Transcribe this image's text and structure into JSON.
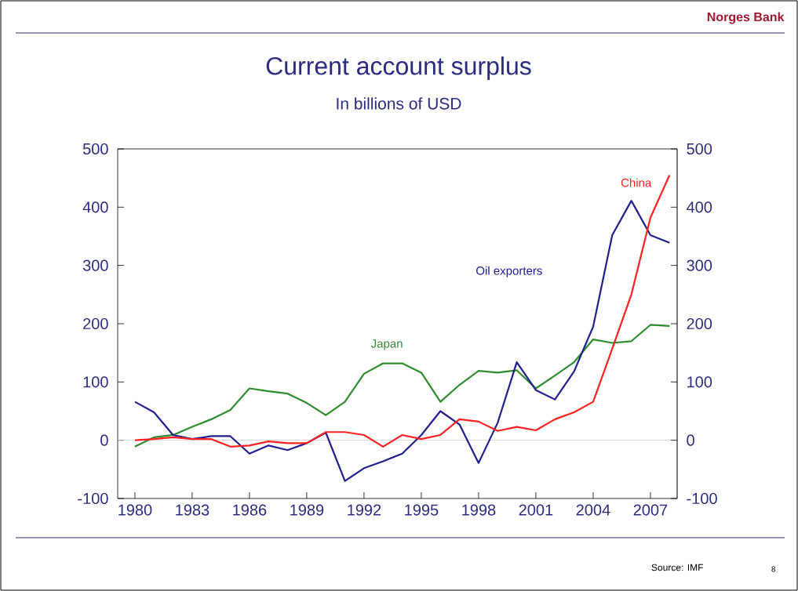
{
  "chart_data": {
    "type": "line",
    "title": "Current account surplus",
    "subtitle": "In billions of USD",
    "x": [
      1980,
      1981,
      1982,
      1983,
      1984,
      1985,
      1986,
      1987,
      1988,
      1989,
      1990,
      1991,
      1992,
      1993,
      1994,
      1995,
      1996,
      1997,
      1998,
      1999,
      2000,
      2001,
      2002,
      2003,
      2004,
      2005,
      2006,
      2007,
      2008
    ],
    "series": [
      {
        "name": "Japan",
        "color": "#2e8b2e",
        "values": [
          -11,
          5,
          9,
          23,
          36,
          52,
          89,
          84,
          80,
          64,
          43,
          66,
          114,
          132,
          132,
          116,
          66,
          95,
          119,
          116,
          120,
          89,
          111,
          134,
          173,
          167,
          170,
          198,
          196
        ]
      },
      {
        "name": "Oil exporters",
        "color": "#1f1f8f",
        "values": [
          66,
          48,
          9,
          2,
          7,
          7,
          -23,
          -9,
          -17,
          -5,
          13,
          -70,
          -48,
          -36,
          -23,
          9,
          50,
          27,
          -39,
          30,
          134,
          86,
          70,
          118,
          195,
          352,
          411,
          352,
          339
        ]
      },
      {
        "name": "China",
        "color": "#ff2020",
        "values": [
          0,
          2,
          5,
          2,
          2,
          -11,
          -9,
          -2,
          -5,
          -5,
          14,
          14,
          9,
          -11,
          9,
          2,
          9,
          36,
          32,
          16,
          23,
          17,
          36,
          48,
          66,
          157,
          250,
          382,
          455
        ]
      }
    ],
    "xlim": [
      1979.1,
      2008.4
    ],
    "xticks": [
      1980,
      1983,
      1986,
      1989,
      1992,
      1995,
      1998,
      2001,
      2004,
      2007
    ],
    "ylim": [
      -100,
      500
    ],
    "yticks": [
      -100,
      0,
      100,
      200,
      300,
      400,
      500
    ],
    "y2lim": [
      -100,
      500
    ],
    "y2ticks": [
      -100,
      0,
      100,
      200,
      300,
      400,
      500
    ],
    "ref_lines": [
      {
        "axis": "y",
        "value": 0,
        "color": "#c8c8c8"
      }
    ],
    "grid": false,
    "marker": "none",
    "line_style": "solid",
    "annotations": [
      "Norges Bank",
      "Source: IMF",
      "8"
    ]
  }
}
